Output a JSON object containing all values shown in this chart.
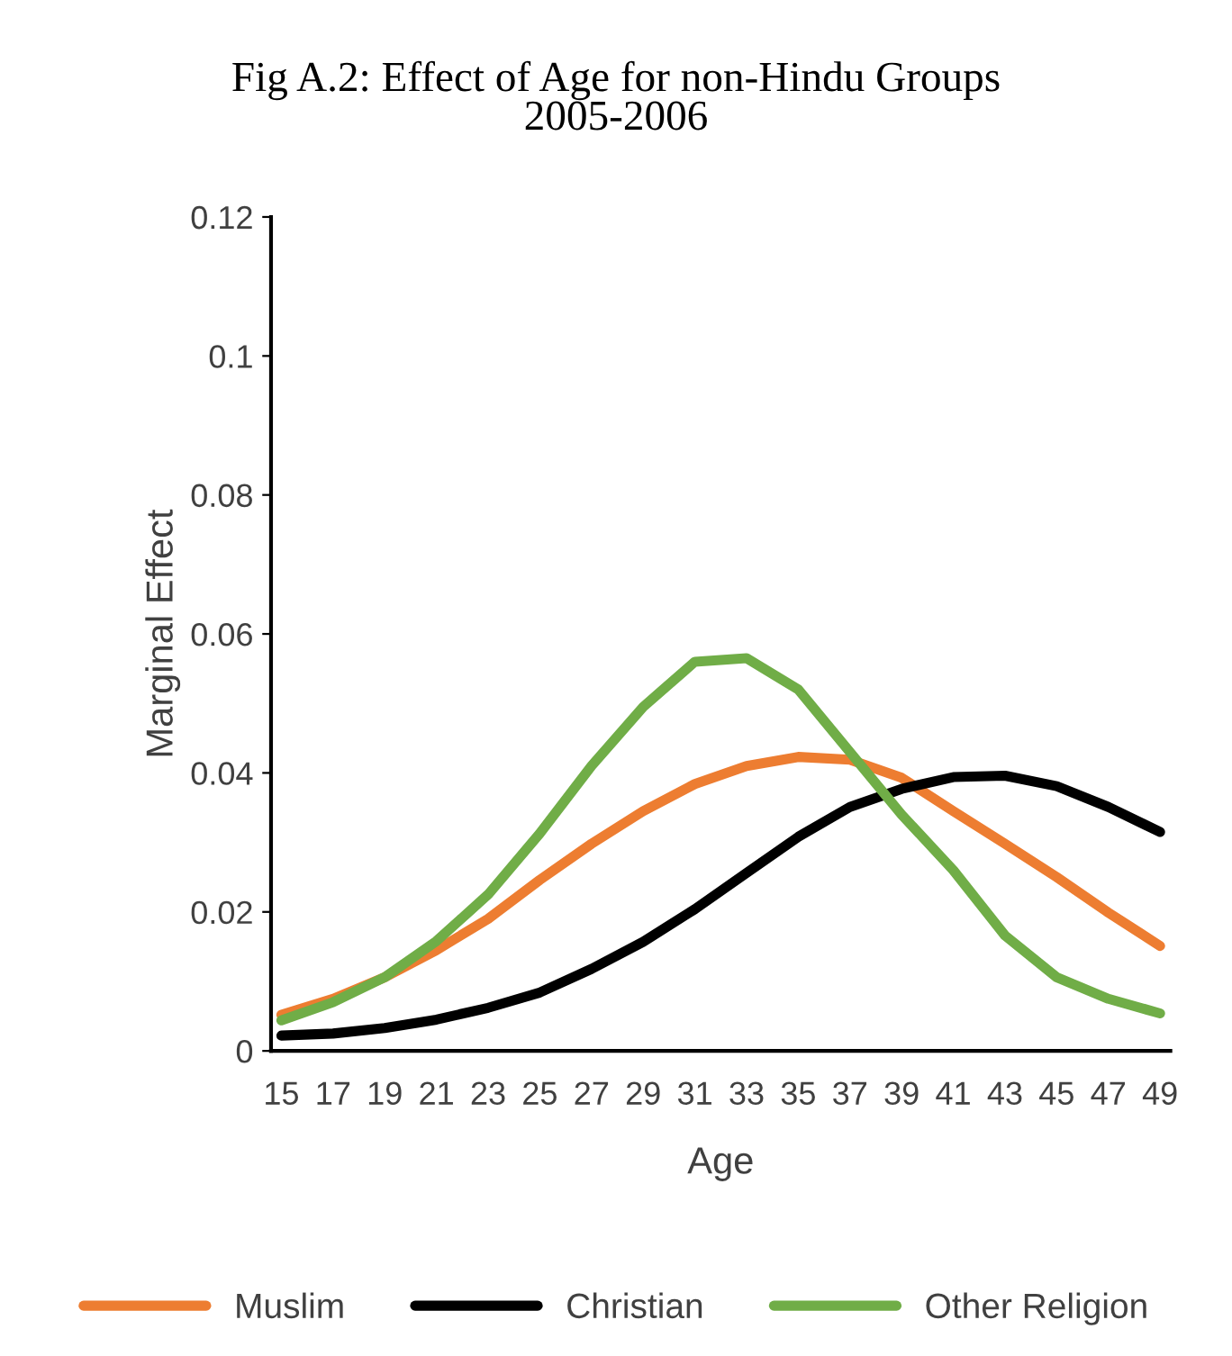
{
  "chart_data": {
    "type": "line",
    "title": "Fig A.2: Effect of Age for non-Hindu Groups\n2005-2006",
    "xlabel": "Age",
    "ylabel": "Marginal Effect",
    "categories": [
      "15",
      "17",
      "19",
      "21",
      "23",
      "25",
      "27",
      "29",
      "31",
      "33",
      "35",
      "37",
      "39",
      "41",
      "43",
      "45",
      "47",
      "49"
    ],
    "ylim": [
      0,
      0.12
    ],
    "yticks": [
      0,
      0.02,
      0.04,
      0.06,
      0.08,
      0.1,
      0.12
    ],
    "grid": false,
    "legend": "bottom",
    "marker": "none",
    "line_style": "solid",
    "series": [
      {
        "name": "Muslim",
        "color": "#ed7d31",
        "values": [
          0.0052,
          0.0075,
          0.0106,
          0.0145,
          0.019,
          0.0246,
          0.0298,
          0.0345,
          0.0384,
          0.041,
          0.0423,
          0.0419,
          0.0393,
          0.0345,
          0.0298,
          0.025,
          0.0199,
          0.0151
        ]
      },
      {
        "name": "Christian",
        "color": "#000000",
        "values": [
          0.0022,
          0.0025,
          0.0033,
          0.0045,
          0.0062,
          0.0084,
          0.0118,
          0.0157,
          0.0204,
          0.0256,
          0.0308,
          0.0351,
          0.0377,
          0.0394,
          0.0396,
          0.0381,
          0.0351,
          0.0315
        ]
      },
      {
        "name": "Other Religion",
        "color": "#70ad47",
        "values": [
          0.0044,
          0.007,
          0.0106,
          0.0158,
          0.0225,
          0.0313,
          0.041,
          0.0495,
          0.056,
          0.0565,
          0.052,
          0.043,
          0.034,
          0.026,
          0.0166,
          0.0106,
          0.0075,
          0.0054
        ]
      }
    ]
  }
}
